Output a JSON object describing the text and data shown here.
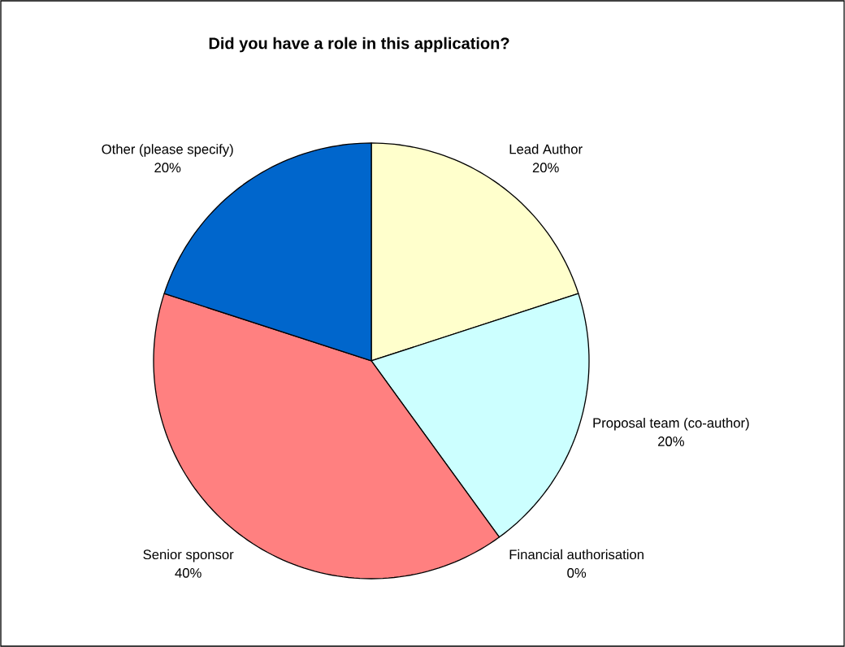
{
  "chart_data": {
    "type": "pie",
    "title": "Did you have a role in this application?",
    "categories": [
      "Lead Author",
      "Proposal team (co-author)",
      "Financial authorisation",
      "Senior sponsor",
      "Other (please specify)"
    ],
    "values": [
      20,
      20,
      0,
      40,
      20
    ],
    "value_labels": [
      "20%",
      "20%",
      "0%",
      "40%",
      "20%"
    ],
    "colors": [
      "#ffffcc",
      "#ccffff",
      "#9999ff",
      "#ff8080",
      "#0066cc"
    ]
  }
}
